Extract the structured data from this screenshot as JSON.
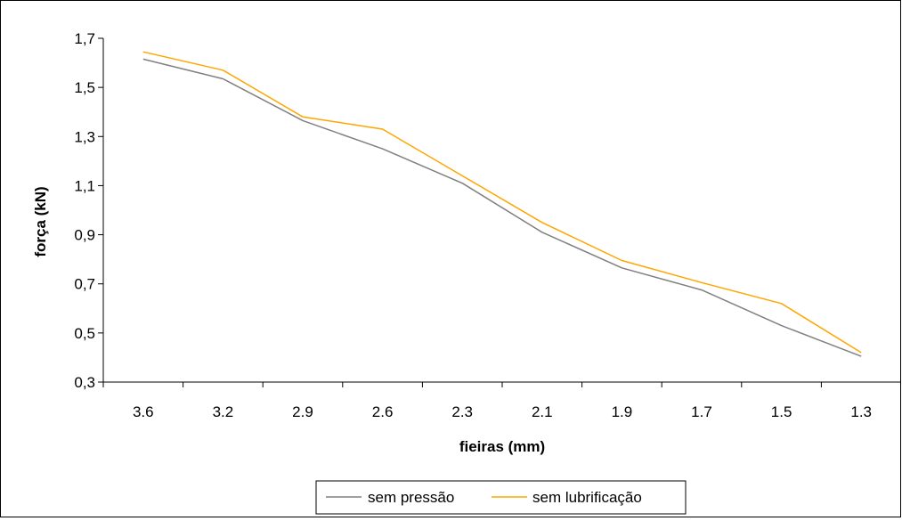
{
  "chart_data": {
    "type": "line",
    "title": "",
    "xlabel": "fieiras (mm)",
    "ylabel": "força (kN)",
    "categories": [
      "3.6",
      "3.2",
      "2.9",
      "2.6",
      "2.3",
      "2.1",
      "1.9",
      "1.7",
      "1.5",
      "1.3"
    ],
    "ylim": [
      0.3,
      1.7
    ],
    "yticks": [
      "0,3",
      "0,5",
      "0,7",
      "0,9",
      "1,1",
      "1,3",
      "1,5",
      "1,7"
    ],
    "ytick_values": [
      0.3,
      0.5,
      0.7,
      0.9,
      1.1,
      1.3,
      1.5,
      1.7
    ],
    "grid": false,
    "legend_position": "bottom",
    "series": [
      {
        "name": "sem pressão",
        "color": "#808080",
        "values": [
          1.615,
          1.535,
          1.365,
          1.25,
          1.11,
          0.91,
          0.765,
          0.675,
          0.53,
          0.405
        ]
      },
      {
        "name": "sem lubrificação",
        "color": "#FFA500",
        "values": [
          1.645,
          1.57,
          1.38,
          1.33,
          1.14,
          0.95,
          0.795,
          0.705,
          0.62,
          0.42
        ]
      }
    ]
  }
}
